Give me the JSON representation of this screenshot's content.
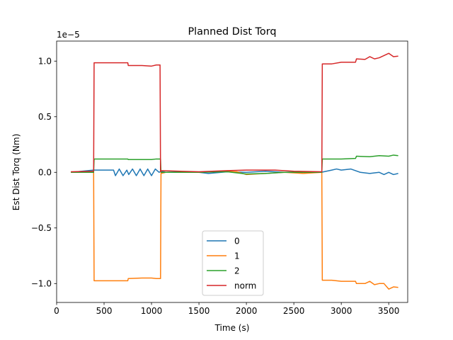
{
  "chart_data": {
    "type": "line",
    "title": "Planned Dist Torq",
    "xlabel": "Time (s)",
    "ylabel": "Est Dist Torq (Nm)",
    "offset_text": "1e−5",
    "xlim": [
      0,
      3700
    ],
    "ylim": [
      -1.17e-05,
      1.18e-05
    ],
    "xticks": [
      0,
      500,
      1000,
      1500,
      2000,
      2500,
      3000,
      3500
    ],
    "xtick_labels": [
      "0",
      "500",
      "1000",
      "1500",
      "2000",
      "2500",
      "3000",
      "3500"
    ],
    "yticks": [
      -1e-05,
      -5e-06,
      0.0,
      5e-06,
      1e-05
    ],
    "ytick_labels": [
      "−1.0",
      "−0.5",
      "0.0",
      "0.5",
      "1.0"
    ],
    "legend_position": "lower center",
    "series": [
      {
        "name": "0",
        "color": "#1f77b4",
        "points": [
          [
            150,
            0.0
          ],
          [
            390,
            2e-07
          ],
          [
            395,
            2e-07
          ],
          [
            600,
            2e-07
          ],
          [
            620,
            -3e-07
          ],
          [
            660,
            3e-07
          ],
          [
            700,
            -3e-07
          ],
          [
            740,
            2e-07
          ],
          [
            760,
            -2e-07
          ],
          [
            800,
            3e-07
          ],
          [
            840,
            -3e-07
          ],
          [
            880,
            3e-07
          ],
          [
            920,
            -3e-07
          ],
          [
            960,
            3e-07
          ],
          [
            1000,
            -3e-07
          ],
          [
            1040,
            3e-07
          ],
          [
            1080,
            0.0
          ],
          [
            1100,
            1e-07
          ],
          [
            1150,
            0.0
          ],
          [
            1300,
            5e-08
          ],
          [
            1500,
            0.0
          ],
          [
            1600,
            -1e-07
          ],
          [
            1800,
            5e-08
          ],
          [
            2000,
            0.0
          ],
          [
            2200,
            1e-07
          ],
          [
            2400,
            0.0
          ],
          [
            2600,
            5e-08
          ],
          [
            2790,
            0.0
          ],
          [
            2900,
            2e-07
          ],
          [
            2950,
            3e-07
          ],
          [
            3000,
            2e-07
          ],
          [
            3100,
            3e-07
          ],
          [
            3200,
            0.0
          ],
          [
            3300,
            -1e-07
          ],
          [
            3400,
            0.0
          ],
          [
            3450,
            -2e-07
          ],
          [
            3500,
            0.0
          ],
          [
            3550,
            -2e-07
          ],
          [
            3600,
            -1e-07
          ]
        ]
      },
      {
        "name": "1",
        "color": "#ff7f0e",
        "points": [
          [
            150,
            0.0
          ],
          [
            390,
            0.0
          ],
          [
            395,
            -9.75e-06
          ],
          [
            750,
            -9.75e-06
          ],
          [
            755,
            -9.55e-06
          ],
          [
            900,
            -9.5e-06
          ],
          [
            1000,
            -9.5e-06
          ],
          [
            1050,
            -9.55e-06
          ],
          [
            1095,
            -9.55e-06
          ],
          [
            1100,
            -1e-07
          ],
          [
            1150,
            0.0
          ],
          [
            1500,
            0.0
          ],
          [
            1700,
            1e-07
          ],
          [
            1900,
            5e-08
          ],
          [
            2000,
            -2e-07
          ],
          [
            2200,
            -1e-07
          ],
          [
            2400,
            0.0
          ],
          [
            2600,
            -1e-07
          ],
          [
            2795,
            0.0
          ],
          [
            2800,
            -9.7e-06
          ],
          [
            2900,
            -9.7e-06
          ],
          [
            3000,
            -9.8e-06
          ],
          [
            3150,
            -9.8e-06
          ],
          [
            3160,
            -1e-05
          ],
          [
            3250,
            -1e-05
          ],
          [
            3300,
            -9.8e-06
          ],
          [
            3350,
            -1.01e-05
          ],
          [
            3400,
            -1e-05
          ],
          [
            3450,
            -1e-05
          ],
          [
            3500,
            -1.05e-05
          ],
          [
            3550,
            -1.03e-05
          ],
          [
            3600,
            -1.035e-05
          ]
        ]
      },
      {
        "name": "2",
        "color": "#2ca02c",
        "points": [
          [
            150,
            0.0
          ],
          [
            390,
            0.0
          ],
          [
            395,
            1.2e-06
          ],
          [
            750,
            1.2e-06
          ],
          [
            755,
            1.15e-06
          ],
          [
            1000,
            1.15e-06
          ],
          [
            1050,
            1.2e-06
          ],
          [
            1095,
            1.2e-06
          ],
          [
            1100,
            0.0
          ],
          [
            1500,
            0.0
          ],
          [
            1800,
            5e-08
          ],
          [
            2000,
            -1.5e-07
          ],
          [
            2200,
            -1e-07
          ],
          [
            2400,
            0.0
          ],
          [
            2600,
            0.0
          ],
          [
            2795,
            0.0
          ],
          [
            2800,
            1.2e-06
          ],
          [
            3000,
            1.2e-06
          ],
          [
            3150,
            1.25e-06
          ],
          [
            3160,
            1.45e-06
          ],
          [
            3300,
            1.4e-06
          ],
          [
            3400,
            1.5e-06
          ],
          [
            3500,
            1.45e-06
          ],
          [
            3550,
            1.55e-06
          ],
          [
            3600,
            1.5e-06
          ]
        ]
      },
      {
        "name": "norm",
        "color": "#d62728",
        "points": [
          [
            150,
            5e-08
          ],
          [
            390,
            1e-07
          ],
          [
            395,
            9.85e-06
          ],
          [
            750,
            9.85e-06
          ],
          [
            755,
            9.6e-06
          ],
          [
            900,
            9.6e-06
          ],
          [
            1000,
            9.55e-06
          ],
          [
            1050,
            9.65e-06
          ],
          [
            1090,
            9.65e-06
          ],
          [
            1095,
            5e-08
          ],
          [
            1100,
            1.5e-07
          ],
          [
            1500,
            5e-08
          ],
          [
            1800,
            1.5e-07
          ],
          [
            2000,
            2e-07
          ],
          [
            2300,
            2e-07
          ],
          [
            2500,
            1e-07
          ],
          [
            2795,
            5e-08
          ],
          [
            2800,
            9.75e-06
          ],
          [
            2900,
            9.75e-06
          ],
          [
            3000,
            9.9e-06
          ],
          [
            3150,
            9.9e-06
          ],
          [
            3160,
            1.02e-05
          ],
          [
            3250,
            1.015e-05
          ],
          [
            3300,
            1.04e-05
          ],
          [
            3350,
            1.02e-05
          ],
          [
            3400,
            1.03e-05
          ],
          [
            3450,
            1.05e-05
          ],
          [
            3500,
            1.07e-05
          ],
          [
            3550,
            1.04e-05
          ],
          [
            3600,
            1.045e-05
          ]
        ]
      }
    ]
  }
}
